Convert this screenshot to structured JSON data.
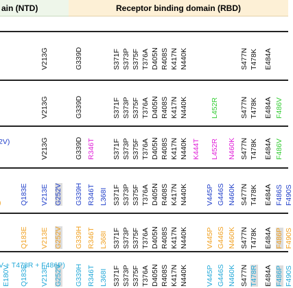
{
  "headers": {
    "ntd": "ain (NTD)",
    "rbd": "Receptor binding domain (RBD)"
  },
  "colors": {
    "black": "#111111",
    "green": "#33cc33",
    "magenta": "#e020d8",
    "blue": "#1f3ec9",
    "orange": "#f0a020",
    "cyan": "#22a8d8",
    "highlight": "#dddddd",
    "line": "#222222"
  },
  "rows": [
    {
      "mutations": [
        {
          "t": "V213G",
          "c": "black"
        },
        {
          "t": "G339D",
          "c": "black"
        },
        {
          "t": "S371F",
          "c": "black"
        },
        {
          "t": "S373P",
          "c": "black"
        },
        {
          "t": "S375F",
          "c": "black"
        },
        {
          "t": "T376A",
          "c": "black"
        },
        {
          "t": "D405N",
          "c": "black"
        },
        {
          "t": "R408S",
          "c": "black"
        },
        {
          "t": "K417N",
          "c": "black"
        },
        {
          "t": "N440K",
          "c": "black"
        },
        {
          "t": "S477N",
          "c": "black"
        },
        {
          "t": "T478K",
          "c": "black"
        },
        {
          "t": "E484A",
          "c": "black"
        }
      ]
    },
    {
      "mutations": [
        {
          "t": "V213G",
          "c": "black"
        },
        {
          "t": "G339D",
          "c": "black"
        },
        {
          "t": "S371F",
          "c": "black"
        },
        {
          "t": "S373P",
          "c": "black"
        },
        {
          "t": "S375F",
          "c": "black"
        },
        {
          "t": "T376A",
          "c": "black"
        },
        {
          "t": "D405N",
          "c": "black"
        },
        {
          "t": "R408S",
          "c": "black"
        },
        {
          "t": "K417N",
          "c": "black"
        },
        {
          "t": "N440K",
          "c": "black"
        },
        {
          "t": "L452R",
          "c": "green"
        },
        {
          "t": "S477N",
          "c": "black"
        },
        {
          "t": "T478K",
          "c": "black"
        },
        {
          "t": "E484A",
          "c": "black"
        },
        {
          "t": "F486V",
          "c": "green"
        }
      ]
    },
    {
      "mutations": [
        {
          "t": "V213G",
          "c": "black"
        },
        {
          "t": "G339D",
          "c": "black"
        },
        {
          "t": "R346T",
          "c": "magenta"
        },
        {
          "t": "S371F",
          "c": "black"
        },
        {
          "t": "S373P",
          "c": "black"
        },
        {
          "t": "S375F",
          "c": "black"
        },
        {
          "t": "T376A",
          "c": "black"
        },
        {
          "t": "D405N",
          "c": "black"
        },
        {
          "t": "R408S",
          "c": "black"
        },
        {
          "t": "K417N",
          "c": "black"
        },
        {
          "t": "N440K",
          "c": "black"
        },
        {
          "t": "K444T",
          "c": "magenta"
        },
        {
          "t": "L452R",
          "c": "magenta"
        },
        {
          "t": "N460K",
          "c": "magenta"
        },
        {
          "t": "S477N",
          "c": "black"
        },
        {
          "t": "T478K",
          "c": "black"
        },
        {
          "t": "E484A",
          "c": "black"
        },
        {
          "t": "F486V",
          "c": "green"
        }
      ]
    },
    {
      "mutations": [
        {
          "t": "Q183E",
          "c": "blue"
        },
        {
          "t": "V213E",
          "c": "blue"
        },
        {
          "t": "G252V",
          "c": "blue",
          "hl": true
        },
        {
          "t": "G339H",
          "c": "blue"
        },
        {
          "t": "R346T",
          "c": "blue"
        },
        {
          "t": "L368I",
          "c": "blue"
        },
        {
          "t": "S371F",
          "c": "black"
        },
        {
          "t": "S373P",
          "c": "black"
        },
        {
          "t": "S375F",
          "c": "black"
        },
        {
          "t": "T376A",
          "c": "black"
        },
        {
          "t": "D405N",
          "c": "black"
        },
        {
          "t": "R408S",
          "c": "black"
        },
        {
          "t": "K417N",
          "c": "black"
        },
        {
          "t": "N440K",
          "c": "black"
        },
        {
          "t": "V445P",
          "c": "blue"
        },
        {
          "t": "G446S",
          "c": "blue"
        },
        {
          "t": "N460K",
          "c": "blue"
        },
        {
          "t": "S477N",
          "c": "black"
        },
        {
          "t": "T478K",
          "c": "black"
        },
        {
          "t": "E484A",
          "c": "black"
        },
        {
          "t": "F486S",
          "c": "blue"
        },
        {
          "t": "F490S",
          "c": "blue"
        }
      ]
    },
    {
      "mutations": [
        {
          "t": "Q183E",
          "c": "orange"
        },
        {
          "t": "V213E",
          "c": "orange"
        },
        {
          "t": "G252V",
          "c": "orange",
          "hl": true
        },
        {
          "t": "G339H",
          "c": "orange"
        },
        {
          "t": "R346T",
          "c": "orange"
        },
        {
          "t": "L368I",
          "c": "orange"
        },
        {
          "t": "S371F",
          "c": "black"
        },
        {
          "t": "S373P",
          "c": "black"
        },
        {
          "t": "S375F",
          "c": "black"
        },
        {
          "t": "T376A",
          "c": "black"
        },
        {
          "t": "D405N",
          "c": "black"
        },
        {
          "t": "R408S",
          "c": "black"
        },
        {
          "t": "K417N",
          "c": "black"
        },
        {
          "t": "N440K",
          "c": "black"
        },
        {
          "t": "V445P",
          "c": "orange"
        },
        {
          "t": "G446S",
          "c": "orange"
        },
        {
          "t": "N460K",
          "c": "orange"
        },
        {
          "t": "S477N",
          "c": "black"
        },
        {
          "t": "T478K",
          "c": "black"
        },
        {
          "t": "E484A",
          "c": "black"
        },
        {
          "t": "F486P",
          "c": "orange",
          "hl": true
        },
        {
          "t": "F490S",
          "c": "orange"
        }
      ]
    },
    {
      "mutations": [
        {
          "t": "E180V",
          "c": "cyan"
        },
        {
          "t": "Q183E",
          "c": "cyan"
        },
        {
          "t": "V213E",
          "c": "cyan"
        },
        {
          "t": "G252V",
          "c": "cyan",
          "hl": true
        },
        {
          "t": "G339H",
          "c": "cyan"
        },
        {
          "t": "R346T",
          "c": "cyan"
        },
        {
          "t": "L368I",
          "c": "cyan"
        },
        {
          "t": "S371F",
          "c": "black"
        },
        {
          "t": "S373P",
          "c": "black"
        },
        {
          "t": "S375F",
          "c": "black"
        },
        {
          "t": "T376A",
          "c": "black"
        },
        {
          "t": "D405N",
          "c": "black"
        },
        {
          "t": "R408S",
          "c": "black"
        },
        {
          "t": "K417N",
          "c": "black"
        },
        {
          "t": "N440K",
          "c": "black"
        },
        {
          "t": "V445P",
          "c": "cyan"
        },
        {
          "t": "G446S",
          "c": "cyan"
        },
        {
          "t": "N460K",
          "c": "cyan"
        },
        {
          "t": "S477N",
          "c": "black"
        },
        {
          "t": "T478R",
          "c": "cyan",
          "hl": true
        },
        {
          "t": "E484A",
          "c": "black"
        },
        {
          "t": "F486P",
          "c": "cyan",
          "hl": true
        },
        {
          "t": "F490S",
          "c": "cyan"
        }
      ]
    }
  ],
  "labels": [
    {
      "text": "2V)",
      "c": "blue"
    },
    {
      "text": ")",
      "c": "orange"
    },
    {
      "text": "V + T478R + F486P)",
      "c": "cyan"
    }
  ]
}
